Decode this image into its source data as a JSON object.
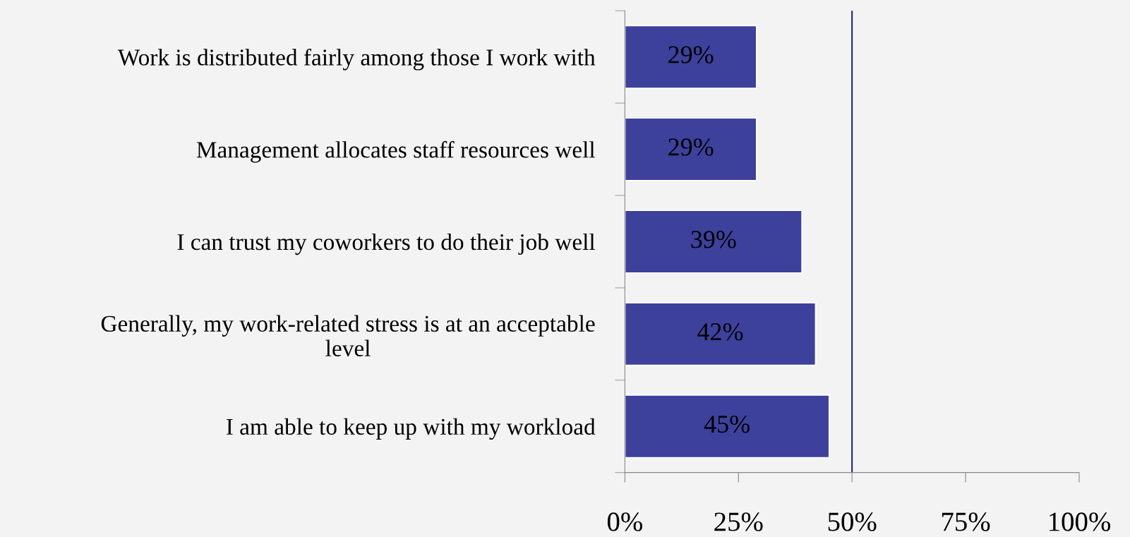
{
  "chart_data": {
    "type": "bar",
    "orientation": "horizontal",
    "categories": [
      "Work is distributed fairly among those I work with",
      "Management allocates staff resources well",
      "I can trust my coworkers to do their job well",
      "Generally, my work-related stress is at an acceptable level",
      "I am able to keep up with my workload"
    ],
    "values": [
      29,
      29,
      39,
      42,
      45
    ],
    "value_labels": [
      "29%",
      "29%",
      "39%",
      "42%",
      "45%"
    ],
    "color": "#3d419c",
    "xlim": [
      0,
      100
    ],
    "xticks": [
      {
        "value": 0,
        "label": "0%"
      },
      {
        "value": 25,
        "label": "25%"
      },
      {
        "value": 50,
        "label": "50%"
      },
      {
        "value": 75,
        "label": "75%"
      },
      {
        "value": 100,
        "label": "100%"
      }
    ],
    "ref_lines": [
      {
        "axis": "x",
        "value": 50,
        "color": "#1f2a6b"
      }
    ],
    "grid": false,
    "legend": false
  }
}
